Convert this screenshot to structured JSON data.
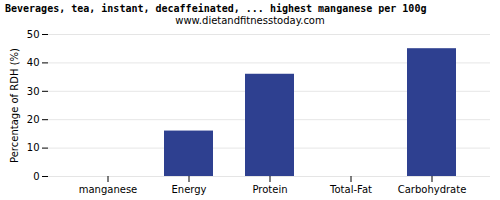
{
  "chart_data": {
    "type": "bar",
    "title": "Beverages, tea, instant, decaffeinated, ... highest manganese per 100g",
    "subtitle": "www.dietandfitnesstoday.com",
    "categories": [
      "manganese",
      "Energy",
      "Protein",
      "Total-Fat",
      "Carbohydrate"
    ],
    "values": [
      0,
      16,
      36,
      0,
      45
    ],
    "color": "#2e4090",
    "ylabel": "Percentage of RDH (%)",
    "ylim": [
      0,
      50
    ],
    "yticks": [
      0,
      10,
      20,
      30,
      40,
      50
    ],
    "grid": true
  }
}
